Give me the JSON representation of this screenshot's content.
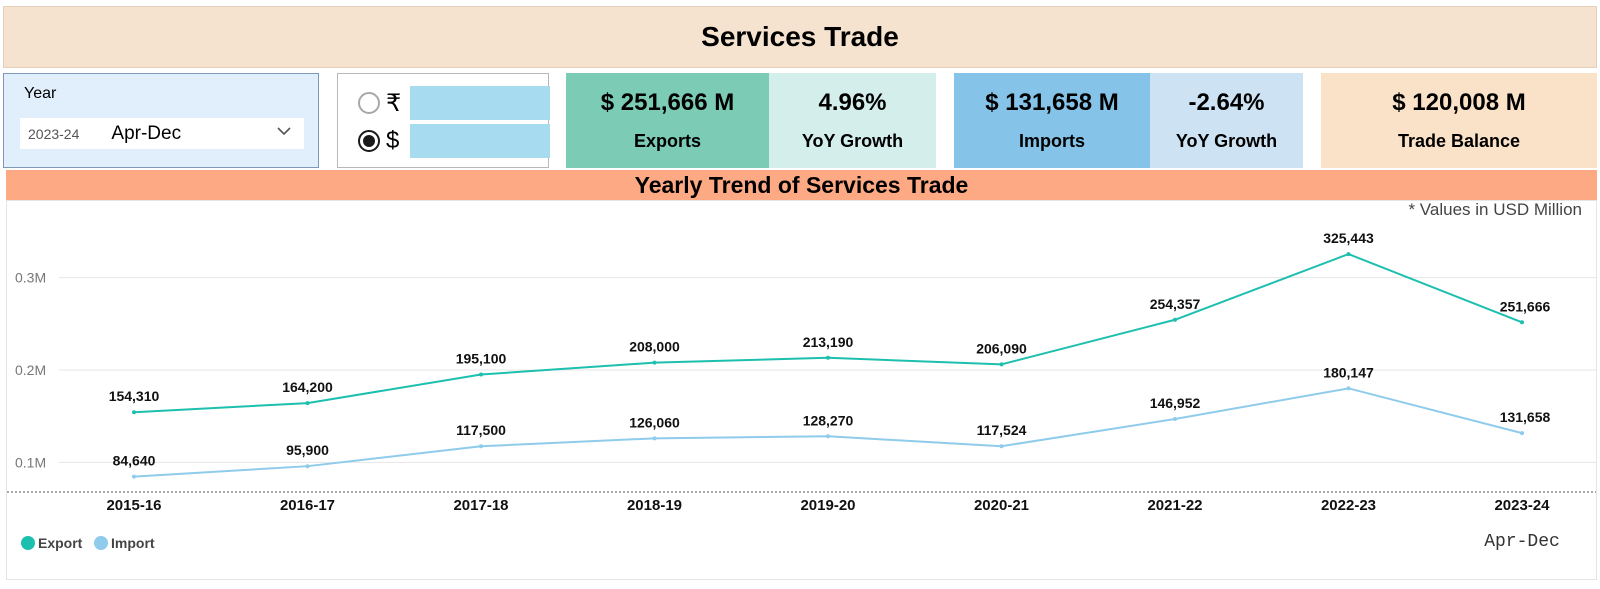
{
  "header": {
    "title": "Services Trade"
  },
  "year_filter": {
    "label": "Year",
    "fiscal_year": "2023-24",
    "period": "Apr-Dec"
  },
  "currency_toggle": {
    "options": [
      {
        "symbol": "₹",
        "selected": false
      },
      {
        "symbol": "$",
        "selected": true
      }
    ],
    "swatch_color": "#a7dcf0"
  },
  "kpis": {
    "exports": {
      "value": "$ 251,666 M",
      "label": "Exports",
      "color": "#7ccbb5"
    },
    "exports_growth": {
      "value": "4.96%",
      "label": "YoY Growth",
      "color": "#d4efeb"
    },
    "imports": {
      "value": "$ 131,658 M",
      "label": "Imports",
      "color": "#85c3e8"
    },
    "imports_growth": {
      "value": "-2.64%",
      "label": "YoY Growth",
      "color": "#cde3f3"
    },
    "trade_balance": {
      "value": "$ 120,008 M",
      "label": "Trade Balance",
      "color": "#fae2c8"
    }
  },
  "chart_data": {
    "type": "line",
    "title": "Yearly Trend of Services Trade",
    "note": "* Values in USD Million",
    "categories": [
      "2015-16",
      "2016-17",
      "2017-18",
      "2018-19",
      "2019-20",
      "2020-21",
      "2021-22",
      "2022-23",
      "2023-24"
    ],
    "category_sublabel": "Apr-Dec",
    "series": [
      {
        "name": "Export",
        "color": "#1dbfae",
        "values": [
          154310,
          164200,
          195100,
          208000,
          213190,
          206090,
          254357,
          325443,
          251666
        ],
        "labels": [
          "154,310",
          "164,200",
          "195,100",
          "208,000",
          "213,190",
          "206,090",
          "254,357",
          "325,443",
          "251,666"
        ]
      },
      {
        "name": "Import",
        "color": "#8fcbeb",
        "values": [
          84640,
          95900,
          117500,
          126060,
          128270,
          117524,
          146952,
          180147,
          131658
        ],
        "labels": [
          "84,640",
          "95,900",
          "117,500",
          "126,060",
          "128,270",
          "117,524",
          "146,952",
          "180,147",
          "131,658"
        ]
      }
    ],
    "yticks": [
      100000,
      200000,
      300000
    ],
    "ytick_labels": [
      "0.1M",
      "0.2M",
      "0.3M"
    ],
    "grid": true,
    "legend": "bottom-left"
  }
}
